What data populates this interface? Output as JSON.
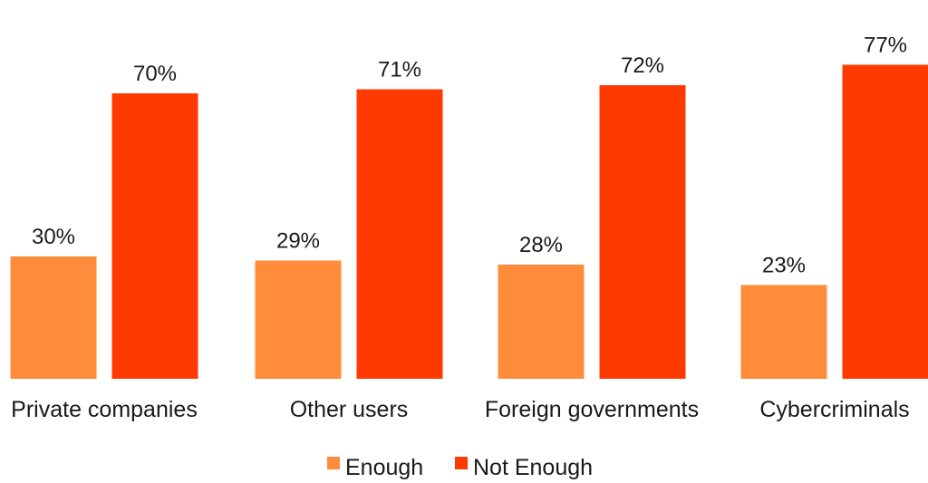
{
  "chart_data": {
    "type": "bar",
    "title": "",
    "xlabel": "",
    "ylabel": "",
    "ylim": [
      0,
      80
    ],
    "grid": false,
    "legend_position": "bottom",
    "categories": [
      "Private companies",
      "Other users",
      "Foreign governments",
      "Cybercriminals"
    ],
    "series": [
      {
        "name": "Enough",
        "color": "#FF8C3A",
        "values": [
          30,
          29,
          28,
          23
        ],
        "labels": [
          "30%",
          "29%",
          "28%",
          "23%"
        ]
      },
      {
        "name": "Not Enough",
        "color": "#FF3A00",
        "values": [
          70,
          71,
          72,
          77
        ],
        "labels": [
          "70%",
          "71%",
          "72%",
          "77%"
        ]
      }
    ]
  }
}
